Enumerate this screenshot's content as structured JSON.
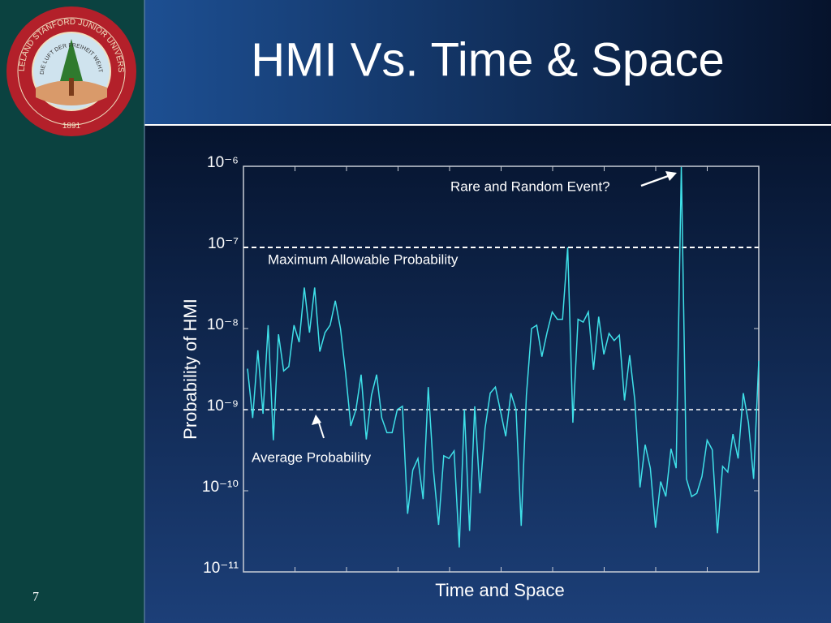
{
  "slide": {
    "title": "HMI Vs. Time & Space",
    "page_number": "7",
    "seal": {
      "ring": "LELAND STANFORD JUNIOR UNIVERSITY",
      "motto": "DIE LUFT DER FREIHEIT WEHT",
      "year": "1891"
    }
  },
  "chart_data": {
    "type": "line",
    "log_scale": true,
    "xlabel": "Time and Space",
    "ylabel": "Probability of HMI",
    "annotation": "Rare and Random Event?",
    "color": "#3fe0e8",
    "ylim": [
      1e-11,
      1e-06
    ],
    "yticks": [
      {
        "value": 1e-11,
        "label": "10⁻¹¹"
      },
      {
        "value": 1e-10,
        "label": "10⁻¹⁰"
      },
      {
        "value": 1e-09,
        "label": "10⁻⁹"
      },
      {
        "value": 1e-08,
        "label": "10⁻⁸"
      },
      {
        "value": 1e-07,
        "label": "10⁻⁷"
      },
      {
        "value": 1e-06,
        "label": "10⁻⁶"
      }
    ],
    "reference_lines": [
      {
        "value": 1e-07,
        "label": "Maximum Allowable Probability"
      },
      {
        "value": 1e-09,
        "label": "Average Probability"
      }
    ],
    "values": [
      3.2e-09,
      7.9e-10,
      5.4e-09,
      8.9e-10,
      1.1e-08,
      4.2e-10,
      8.5e-09,
      3e-09,
      3.4e-09,
      1.1e-08,
      6.8e-09,
      3.2e-08,
      8.9e-09,
      3.2e-08,
      5.2e-09,
      8.9e-09,
      1.1e-08,
      2.2e-08,
      1e-08,
      2.8e-09,
      6.3e-10,
      1e-09,
      2.7e-09,
      4.3e-10,
      1.5e-09,
      2.7e-09,
      7.9e-10,
      5.2e-10,
      5.2e-10,
      1e-09,
      1.1e-09,
      5.2e-11,
      1.8e-10,
      2.5e-10,
      7.9e-11,
      1.9e-09,
      1.8e-10,
      3.8e-11,
      2.7e-10,
      2.5e-10,
      3.1e-10,
      2e-11,
      1e-09,
      3.2e-11,
      1.1e-09,
      9.3e-11,
      5.9e-10,
      1.6e-09,
      1.9e-09,
      9.5e-10,
      4.7e-10,
      1.6e-09,
      1e-09,
      3.7e-11,
      1.5e-09,
      1e-08,
      1.1e-08,
      4.5e-09,
      8.9e-09,
      1.6e-08,
      1.3e-08,
      1.3e-08,
      1e-07,
      6.9e-10,
      1.3e-08,
      1.2e-08,
      1.6e-08,
      3.1e-09,
      1.4e-08,
      4.8e-09,
      8.7e-09,
      7.1e-09,
      8.3e-09,
      1.3e-09,
      4.7e-09,
      1.3e-09,
      1.1e-10,
      3.7e-10,
      1.9e-10,
      3.5e-11,
      1.3e-10,
      8.5e-11,
      3.3e-10,
      1.9e-10,
      9.8e-07,
      1.4e-10,
      8.5e-11,
      9.3e-11,
      1.5e-10,
      4.2e-10,
      3.2e-10,
      3e-11,
      2e-10,
      1.7e-10,
      5e-10,
      2.5e-10,
      1.6e-09,
      6.9e-10,
      1.4e-10,
      4e-09
    ]
  }
}
